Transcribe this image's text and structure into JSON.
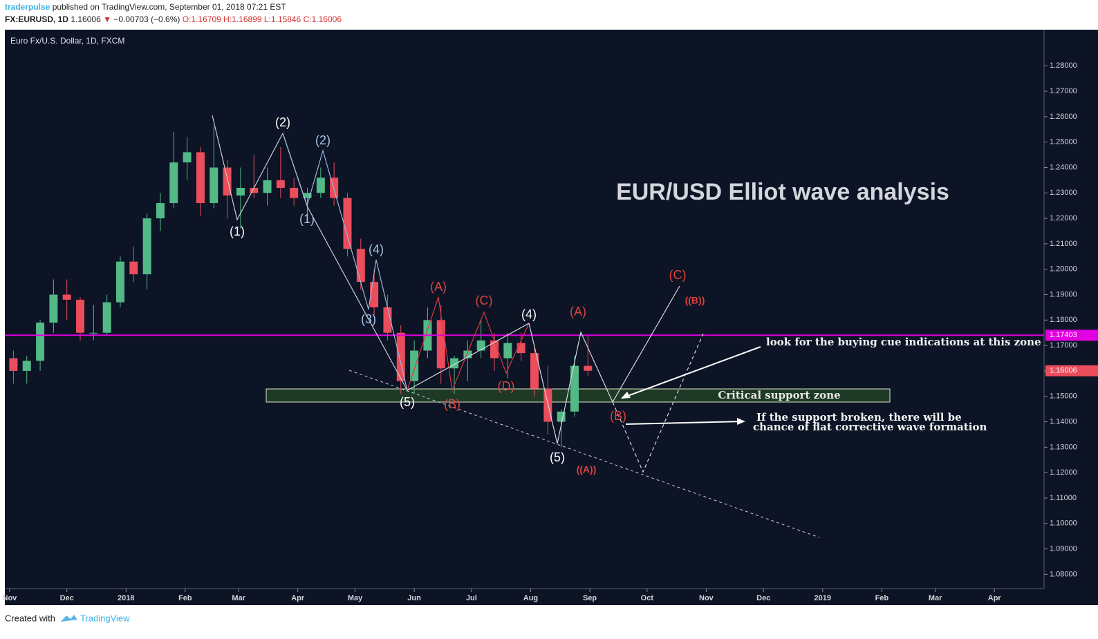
{
  "header": {
    "author": "traderpulse",
    "published": "published on TradingView.com, September 01, 2018 07:21 EST",
    "symbol": "FX:EURUSD, 1D",
    "last": "1.16006",
    "arrow": "▼",
    "change": "−0.00703 (−0.6%)",
    "open": "O:1.16709",
    "high": "H:1.16899",
    "low": "L:1.15846",
    "close": "C:1.16006"
  },
  "footer": {
    "created": "Created with",
    "brand": "TradingView"
  },
  "chart_data": {
    "type": "candlestick",
    "legend": "Euro Fx/U.S. Dollar, 1D, FXCM",
    "title": "EUR/USD Elliot wave analysis",
    "x": [
      2,
      9,
      16,
      23,
      30,
      37,
      44,
      51,
      58,
      65,
      72,
      79,
      86,
      93,
      100,
      107,
      114,
      121,
      128,
      135,
      142,
      149,
      156,
      163,
      170,
      177,
      184,
      191,
      198,
      205,
      212,
      219,
      226,
      233,
      240,
      247,
      254,
      261,
      268,
      275,
      282,
      289,
      296,
      303
    ],
    "open": [
      1.165,
      1.16,
      1.164,
      1.179,
      1.19,
      1.188,
      1.175,
      1.175,
      1.187,
      1.203,
      1.198,
      1.22,
      1.226,
      1.242,
      1.246,
      1.226,
      1.24,
      1.229,
      1.232,
      1.23,
      1.235,
      1.232,
      1.228,
      1.23,
      1.236,
      1.228,
      1.208,
      1.195,
      1.185,
      1.175,
      1.156,
      1.168,
      1.18,
      1.161,
      1.165,
      1.168,
      1.172,
      1.165,
      1.171,
      1.167,
      1.153,
      1.14,
      1.144,
      1.162
    ],
    "high": [
      1.168,
      1.166,
      1.18,
      1.196,
      1.196,
      1.189,
      1.186,
      1.19,
      1.205,
      1.209,
      1.222,
      1.23,
      1.254,
      1.252,
      1.248,
      1.256,
      1.243,
      1.24,
      1.245,
      1.24,
      1.248,
      1.236,
      1.232,
      1.24,
      1.242,
      1.23,
      1.212,
      1.2,
      1.19,
      1.178,
      1.172,
      1.185,
      1.186,
      1.166,
      1.172,
      1.18,
      1.175,
      1.175,
      1.175,
      1.17,
      1.162,
      1.145,
      1.166,
      1.174
    ],
    "low": [
      1.155,
      1.155,
      1.16,
      1.175,
      1.18,
      1.172,
      1.172,
      1.174,
      1.185,
      1.195,
      1.192,
      1.215,
      1.224,
      1.235,
      1.221,
      1.224,
      1.22,
      1.216,
      1.228,
      1.225,
      1.228,
      1.225,
      1.221,
      1.228,
      1.225,
      1.205,
      1.192,
      1.182,
      1.172,
      1.151,
      1.151,
      1.165,
      1.155,
      1.151,
      1.156,
      1.165,
      1.16,
      1.157,
      1.164,
      1.15,
      1.135,
      1.13,
      1.142,
      1.158
    ],
    "close": [
      1.16,
      1.164,
      1.179,
      1.19,
      1.188,
      1.175,
      1.175,
      1.187,
      1.203,
      1.198,
      1.22,
      1.226,
      1.242,
      1.246,
      1.226,
      1.24,
      1.229,
      1.232,
      1.23,
      1.235,
      1.232,
      1.228,
      1.23,
      1.236,
      1.228,
      1.208,
      1.195,
      1.185,
      1.175,
      1.156,
      1.168,
      1.18,
      1.161,
      1.165,
      1.168,
      1.172,
      1.165,
      1.171,
      1.167,
      1.153,
      1.14,
      1.144,
      1.162,
      1.16006
    ],
    "up_color": "#53b987",
    "down_color": "#eb4d5c",
    "xlim": [
      -2.5,
      542
    ],
    "xticks": [
      {
        "value": 0,
        "label": "Nov"
      },
      {
        "value": 30,
        "label": "Dec"
      },
      {
        "value": 61,
        "label": "2018"
      },
      {
        "value": 92,
        "label": "Feb"
      },
      {
        "value": 120,
        "label": "Mar"
      },
      {
        "value": 151,
        "label": "Apr"
      },
      {
        "value": 181,
        "label": "May"
      },
      {
        "value": 212,
        "label": "Jun"
      },
      {
        "value": 242,
        "label": "Jul"
      },
      {
        "value": 273,
        "label": "Aug"
      },
      {
        "value": 304,
        "label": "Sep"
      },
      {
        "value": 334,
        "label": "Oct"
      },
      {
        "value": 365,
        "label": "Nov"
      },
      {
        "value": 395,
        "label": "Dec"
      },
      {
        "value": 426,
        "label": "2019"
      },
      {
        "value": 457,
        "label": "Feb"
      },
      {
        "value": 485,
        "label": "Mar"
      },
      {
        "value": 516,
        "label": "Apr"
      }
    ],
    "ylim": [
      1.0744,
      1.2942
    ],
    "yticks": [
      {
        "value": 1.28,
        "label": "1.28000"
      },
      {
        "value": 1.27,
        "label": "1.27000"
      },
      {
        "value": 1.26,
        "label": "1.26000"
      },
      {
        "value": 1.25,
        "label": "1.25000"
      },
      {
        "value": 1.24,
        "label": "1.24000"
      },
      {
        "value": 1.23,
        "label": "1.23000"
      },
      {
        "value": 1.22,
        "label": "1.22000"
      },
      {
        "value": 1.21,
        "label": "1.21000"
      },
      {
        "value": 1.2,
        "label": "1.20000"
      },
      {
        "value": 1.19,
        "label": "1.19000"
      },
      {
        "value": 1.18,
        "label": "1.18000"
      },
      {
        "value": 1.17,
        "label": "1.17000"
      },
      {
        "value": 1.16,
        "label": "1.16000"
      },
      {
        "value": 1.15,
        "label": "1.15000"
      },
      {
        "value": 1.14,
        "label": "1.14000"
      },
      {
        "value": 1.13,
        "label": "1.13000"
      },
      {
        "value": 1.12,
        "label": "1.12000"
      },
      {
        "value": 1.11,
        "label": "1.11000"
      },
      {
        "value": 1.1,
        "label": "1.10000"
      },
      {
        "value": 1.09,
        "label": "1.09000"
      },
      {
        "value": 1.08,
        "label": "1.08000"
      }
    ],
    "hline": {
      "value": 1.17403,
      "label": "1.17403",
      "color": "#e000e0"
    },
    "last_price": {
      "value": 1.16006,
      "label": "1.16006"
    },
    "zone_label": "Critical support zone",
    "notes": [
      "look for the buying cue indications at this zone",
      "If the support broken, there will be",
      "chance of flat corrective wave formation"
    ],
    "wave_labels": [
      "(2)",
      "(1)",
      "(2)",
      "(1)",
      "(4)",
      "(3)",
      "(A)",
      "(C)",
      "(4)",
      "(A)",
      "(C)",
      "((B))",
      "(5)",
      "(B)",
      "(D)",
      "(B)",
      "(5)",
      "((A))"
    ]
  }
}
